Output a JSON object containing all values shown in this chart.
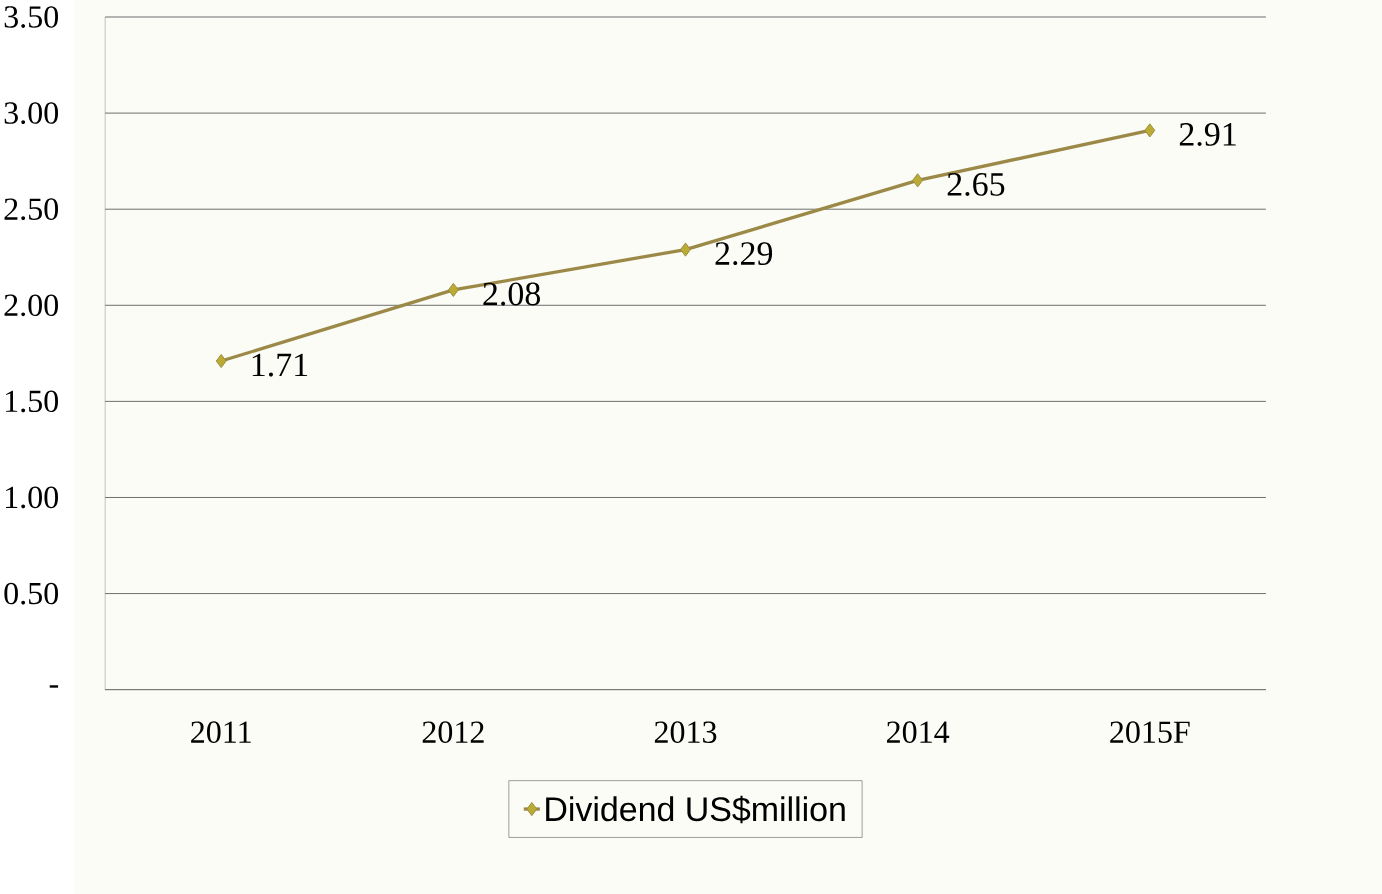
{
  "chart_data": {
    "type": "line",
    "categories": [
      "2011",
      "2012",
      "2013",
      "2014",
      "2015F"
    ],
    "series": [
      {
        "name": "Dividend US$million",
        "color": "#9c8948",
        "values": [
          1.71,
          2.08,
          2.29,
          2.65,
          2.91
        ]
      }
    ],
    "ylim": [
      0,
      3.5
    ],
    "yticks": [
      {
        "value": 0,
        "label": "-"
      },
      {
        "value": 0.5,
        "label": "0.50"
      },
      {
        "value": 1,
        "label": "1.00"
      },
      {
        "value": 1.5,
        "label": "1.50"
      },
      {
        "value": 2,
        "label": "2.00"
      },
      {
        "value": 2.5,
        "label": "2.50"
      },
      {
        "value": 3,
        "label": "3.00"
      },
      {
        "value": 3.5,
        "label": "3.50"
      }
    ],
    "grid": "y",
    "legend": "bottom",
    "marker": "diamond",
    "line_style": "solid",
    "data_labels": true
  }
}
